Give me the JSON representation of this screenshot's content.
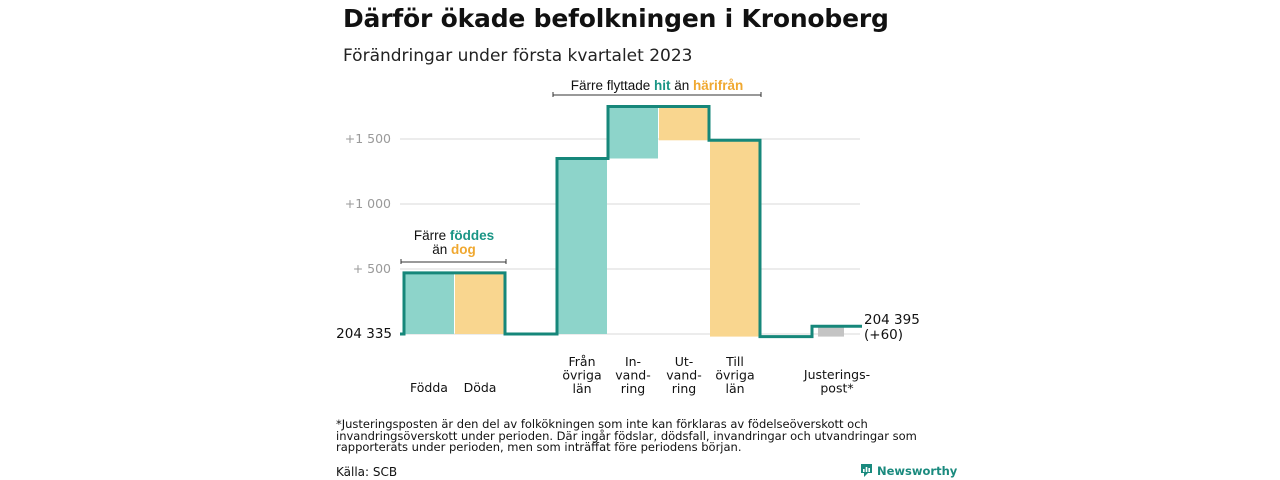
{
  "title": "Därför ökade befolkningen i Kronoberg",
  "subtitle": "Förändringar under första kvartalet 2023",
  "footnote": "*Justeringsposten är den del av folkökningen som inte kan förklaras av födelseöverskott och invandringsöverskott under perioden. Där ingår födslar, dödsfall, invandringar och utvandringar som rapporterats under perioden, men som inträffat före periodens början.",
  "source": "Källa: SCB",
  "brand": "Newsworthy",
  "colors": {
    "increase": "#8dd4ca",
    "decrease": "#f9d68f",
    "adjustment": "#c4c4c4",
    "line": "#16877a",
    "accent_green": "#1a9585",
    "accent_orange": "#f0a830",
    "grid": "#d9d9d9",
    "tick": "#9a9a9a"
  },
  "chart_data": {
    "type": "waterfall",
    "start_label": "204 335",
    "end_label_lines": [
      "204 395",
      "(+60)"
    ],
    "y_ticks": [
      {
        "value": 500,
        "label": "+ 500"
      },
      {
        "value": 1000,
        "label": "+1 000"
      },
      {
        "value": 1500,
        "label": "+1 500"
      }
    ],
    "ylim": [
      -60,
      1600
    ],
    "grid": true,
    "steps": [
      {
        "label_lines": [
          "Födda"
        ],
        "delta": 470,
        "kind": "increase"
      },
      {
        "label_lines": [
          "Döda"
        ],
        "delta": -470,
        "kind": "decrease"
      },
      {
        "label_lines": [
          "Från",
          "övriga",
          "län"
        ],
        "delta": 1350,
        "kind": "increase"
      },
      {
        "label_lines": [
          "In-",
          "vand-",
          "ring"
        ],
        "delta": 400,
        "kind": "increase"
      },
      {
        "label_lines": [
          "Ut-",
          "vand-",
          "ring"
        ],
        "delta": -260,
        "kind": "decrease"
      },
      {
        "label_lines": [
          "Till",
          "övriga",
          "län"
        ],
        "delta": -1510,
        "kind": "decrease"
      },
      {
        "label_lines": [
          "Justerings-",
          "post*"
        ],
        "delta": 80,
        "kind": "adjustment"
      }
    ],
    "annotations": [
      {
        "parts": [
          {
            "text": "Färre ",
            "style": "plain"
          },
          {
            "text": "föddes",
            "style": "green"
          }
        ],
        "parts2": [
          {
            "text": "än ",
            "style": "plain"
          },
          {
            "text": "dog",
            "style": "orange"
          }
        ]
      },
      {
        "parts": [
          {
            "text": "Färre flyttade ",
            "style": "plain"
          },
          {
            "text": "hit",
            "style": "green"
          },
          {
            "text": " än ",
            "style": "plain"
          },
          {
            "text": "härifrån",
            "style": "orange"
          }
        ]
      }
    ]
  }
}
